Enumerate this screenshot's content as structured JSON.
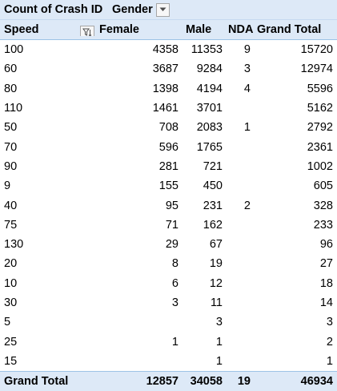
{
  "header": {
    "value_field": "Count of Crash ID",
    "column_field": "Gender",
    "row_field": "Speed",
    "columns": [
      "Female",
      "Male",
      "NDA",
      "Grand Total"
    ]
  },
  "rows": [
    {
      "speed": "100",
      "female": "4358",
      "male": "11353",
      "nda": "9",
      "total": "15720"
    },
    {
      "speed": "60",
      "female": "3687",
      "male": "9284",
      "nda": "3",
      "total": "12974"
    },
    {
      "speed": "80",
      "female": "1398",
      "male": "4194",
      "nda": "4",
      "total": "5596"
    },
    {
      "speed": "110",
      "female": "1461",
      "male": "3701",
      "nda": "",
      "total": "5162"
    },
    {
      "speed": "50",
      "female": "708",
      "male": "2083",
      "nda": "1",
      "total": "2792"
    },
    {
      "speed": "70",
      "female": "596",
      "male": "1765",
      "nda": "",
      "total": "2361"
    },
    {
      "speed": "90",
      "female": "281",
      "male": "721",
      "nda": "",
      "total": "1002"
    },
    {
      "speed": "9",
      "female": "155",
      "male": "450",
      "nda": "",
      "total": "605"
    },
    {
      "speed": "40",
      "female": "95",
      "male": "231",
      "nda": "2",
      "total": "328"
    },
    {
      "speed": "75",
      "female": "71",
      "male": "162",
      "nda": "",
      "total": "233"
    },
    {
      "speed": "130",
      "female": "29",
      "male": "67",
      "nda": "",
      "total": "96"
    },
    {
      "speed": "20",
      "female": "8",
      "male": "19",
      "nda": "",
      "total": "27"
    },
    {
      "speed": "10",
      "female": "6",
      "male": "12",
      "nda": "",
      "total": "18"
    },
    {
      "speed": "30",
      "female": "3",
      "male": "11",
      "nda": "",
      "total": "14"
    },
    {
      "speed": "5",
      "female": "",
      "male": "3",
      "nda": "",
      "total": "3"
    },
    {
      "speed": "25",
      "female": "1",
      "male": "1",
      "nda": "",
      "total": "2"
    },
    {
      "speed": "15",
      "female": "",
      "male": "1",
      "nda": "",
      "total": "1"
    }
  ],
  "grand_total": {
    "label": "Grand Total",
    "female": "12857",
    "male": "34058",
    "nda": "19",
    "total": "46934"
  },
  "icons": {
    "column_dropdown": "chevron-down-icon",
    "row_filter": "filter-sort-icon"
  }
}
